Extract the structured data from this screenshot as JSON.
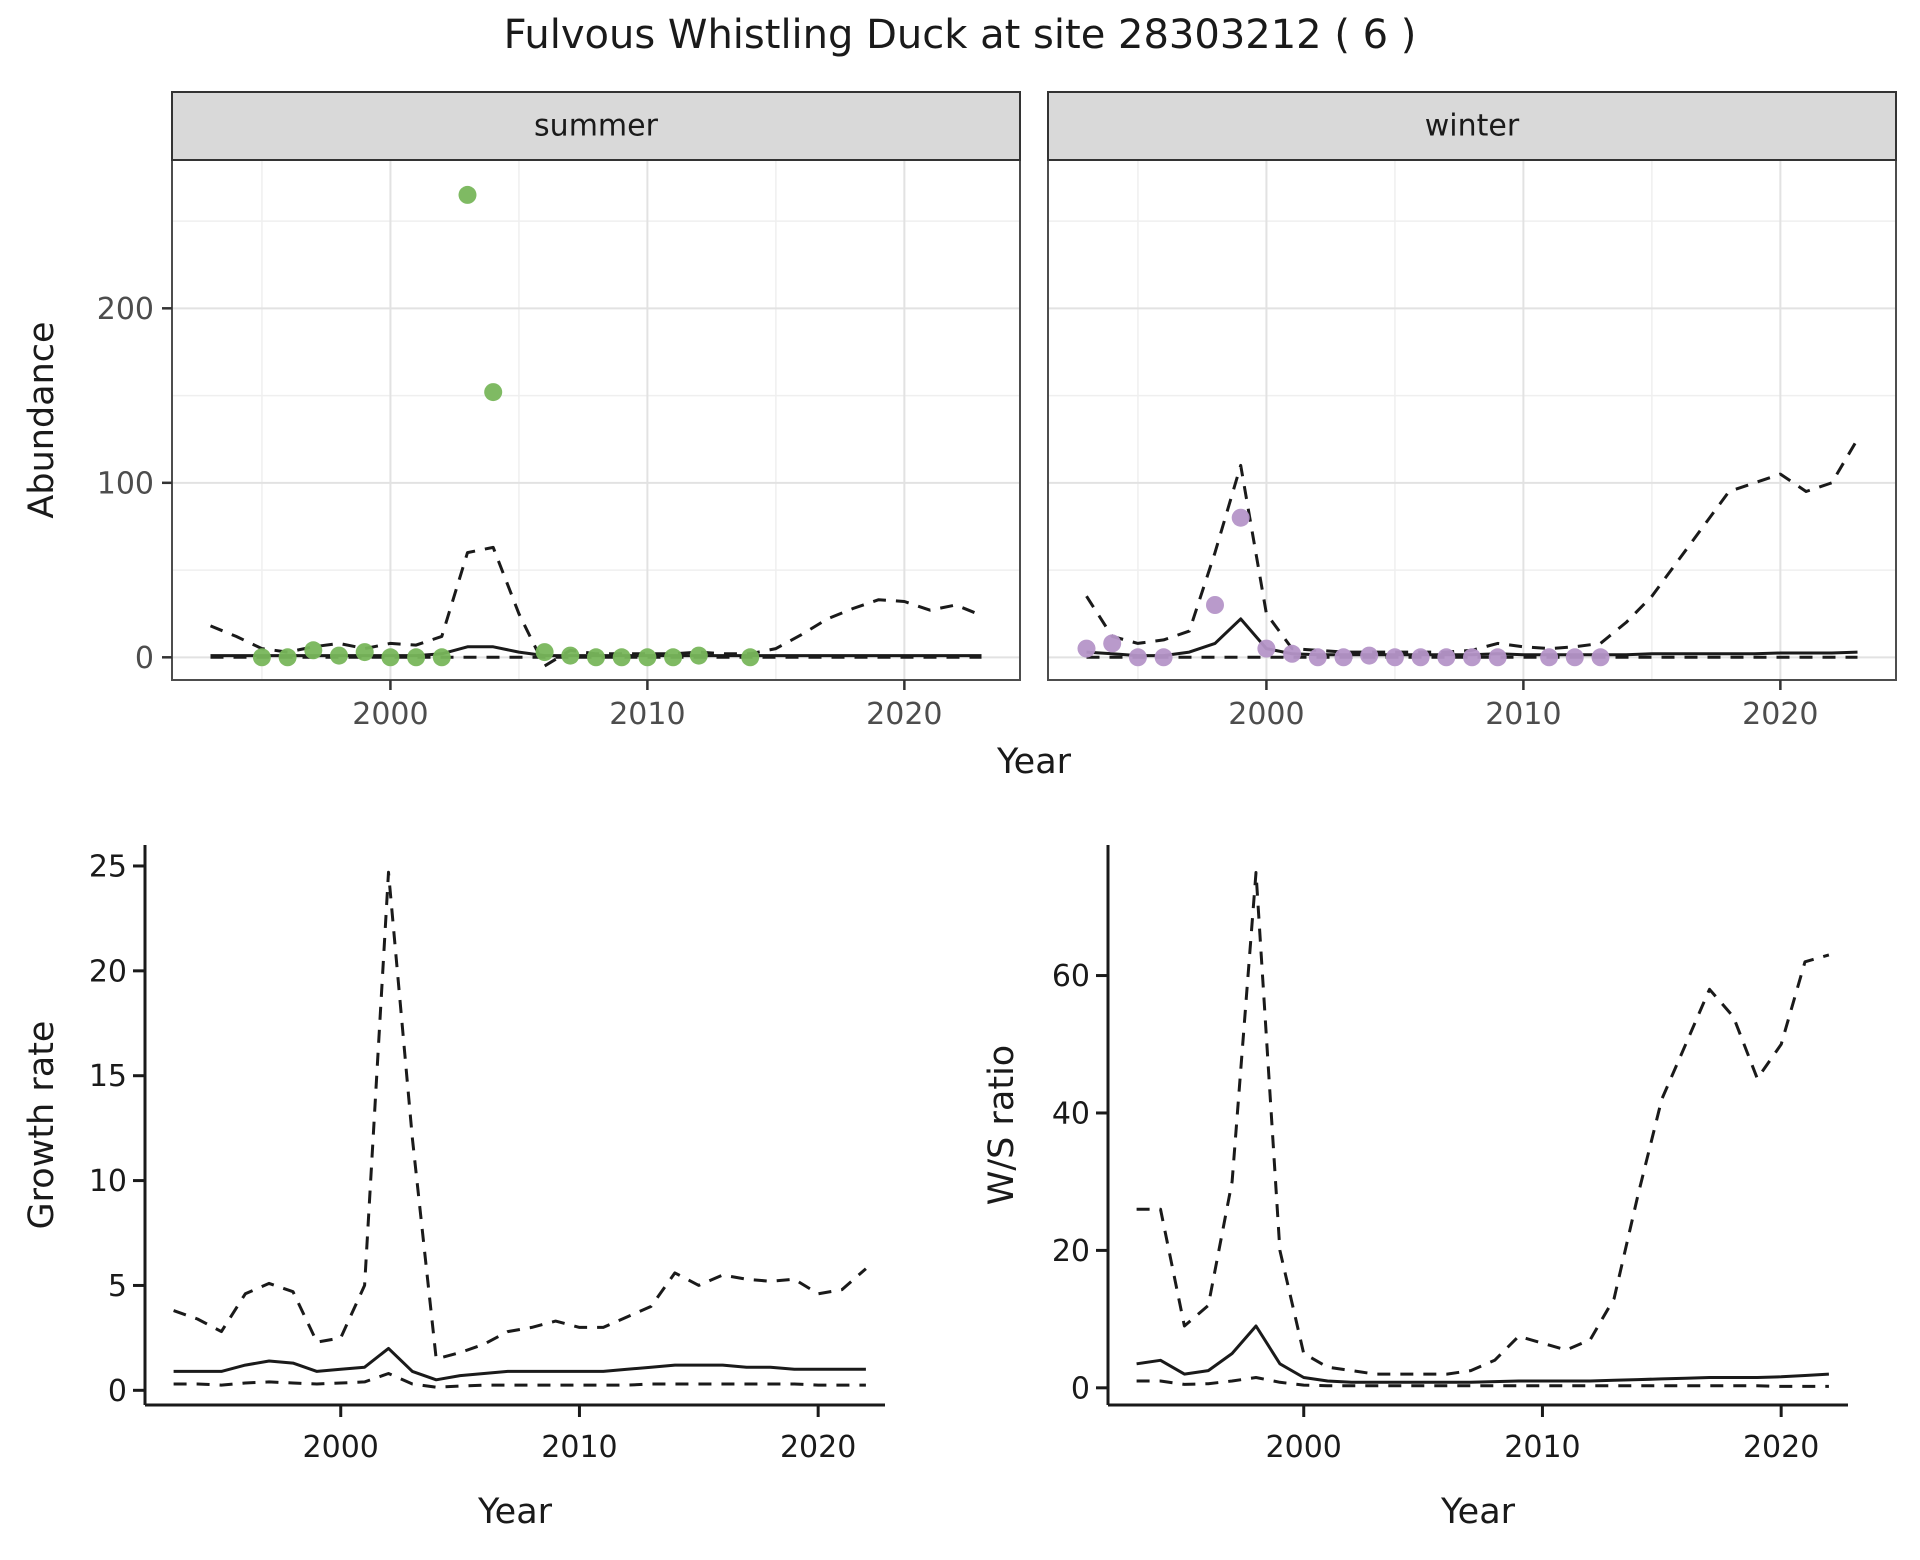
{
  "title": "Fulvous Whistling Duck at site 28303212 ( 6 )",
  "colors": {
    "summer_points": "#78b65b",
    "winter_points": "#b595c8",
    "line": "#1a1a1a",
    "strip_bg": "#d9d9d9",
    "strip_border": "#333333",
    "panel_border": "#4d4d4d",
    "grid_major": "#e2e2e2",
    "grid_minor": "#efefef",
    "tick_label_top": "#4d4d4d",
    "tick_label_bottom": "#1a1a1a"
  },
  "chart_data": [
    {
      "id": "abundance-summer",
      "type": "line",
      "facet_label": "summer",
      "xlabel": "Year",
      "ylabel": "Abundance",
      "xlim": [
        1991.5,
        2024.5
      ],
      "ylim": [
        -13,
        285
      ],
      "xticks": [
        2000,
        2010,
        2020
      ],
      "yticks": [
        0,
        100,
        200
      ],
      "xticks_minor": [
        1995,
        2005,
        2015
      ],
      "yticks_minor": [
        50,
        150,
        250
      ],
      "grid": true,
      "legend": "none",
      "series": [
        {
          "name": "upper-ci",
          "style": "dashed",
          "x": [
            1993,
            1994,
            1995,
            1996,
            1997,
            1998,
            1999,
            2000,
            2001,
            2002,
            2003,
            2004,
            2005,
            2006,
            2007,
            2008,
            2009,
            2010,
            2011,
            2012,
            2013,
            2014,
            2015,
            2016,
            2017,
            2018,
            2019,
            2020,
            2021,
            2022,
            2023
          ],
          "y": [
            18,
            12,
            5,
            3,
            6,
            8,
            5,
            8,
            7,
            12,
            60,
            63,
            25,
            -5,
            4,
            2,
            2,
            2,
            2,
            3,
            2,
            2,
            5,
            13,
            22,
            28,
            33,
            32,
            27,
            30,
            24
          ]
        },
        {
          "name": "lower-ci",
          "style": "dashed",
          "x": [
            1993,
            1994,
            1995,
            1996,
            1997,
            1998,
            1999,
            2000,
            2001,
            2002,
            2003,
            2004,
            2005,
            2006,
            2007,
            2008,
            2009,
            2010,
            2011,
            2012,
            2013,
            2014,
            2015,
            2016,
            2017,
            2018,
            2019,
            2020,
            2021,
            2022,
            2023
          ],
          "y": [
            0,
            0,
            0,
            0,
            0,
            0,
            0,
            0,
            0,
            0,
            0,
            0,
            0,
            0,
            0,
            0,
            0,
            0,
            0,
            0,
            0,
            0,
            0,
            0,
            0,
            0,
            0,
            0,
            0,
            0,
            0
          ]
        },
        {
          "name": "mean",
          "style": "solid",
          "x": [
            1993,
            1994,
            1995,
            1996,
            1997,
            1998,
            1999,
            2000,
            2001,
            2002,
            2003,
            2004,
            2005,
            2006,
            2007,
            2008,
            2009,
            2010,
            2011,
            2012,
            2013,
            2014,
            2015,
            2016,
            2017,
            2018,
            2019,
            2020,
            2021,
            2022,
            2023
          ],
          "y": [
            1,
            1,
            1,
            1,
            1,
            1,
            1,
            1,
            1,
            2,
            6,
            6,
            3,
            1,
            1,
            1,
            1,
            1,
            1,
            1,
            1,
            1,
            1,
            1,
            1,
            1,
            1,
            1,
            1,
            1,
            1
          ]
        },
        {
          "name": "observations",
          "style": "points",
          "color": "#78b65b",
          "x": [
            1995,
            1996,
            1997,
            1998,
            1999,
            2000,
            2001,
            2002,
            2003,
            2004,
            2006,
            2007,
            2008,
            2009,
            2010,
            2011,
            2012,
            2014
          ],
          "y": [
            0,
            0,
            4,
            1,
            3,
            0,
            0,
            0,
            265,
            152,
            3,
            1,
            0,
            0,
            0,
            0,
            1,
            0
          ]
        }
      ]
    },
    {
      "id": "abundance-winter",
      "type": "line",
      "facet_label": "winter",
      "xlabel": "Year",
      "ylabel": "Abundance",
      "xlim": [
        1991.5,
        2024.5
      ],
      "ylim": [
        -13,
        285
      ],
      "xticks": [
        2000,
        2010,
        2020
      ],
      "yticks": [
        0,
        100,
        200
      ],
      "xticks_minor": [
        1995,
        2005,
        2015
      ],
      "yticks_minor": [
        50,
        150,
        250
      ],
      "grid": true,
      "legend": "none",
      "series": [
        {
          "name": "upper-ci",
          "style": "dashed",
          "x": [
            1993,
            1994,
            1995,
            1996,
            1997,
            1998,
            1999,
            2000,
            2001,
            2002,
            2003,
            2004,
            2005,
            2006,
            2007,
            2008,
            2009,
            2010,
            2011,
            2012,
            2013,
            2014,
            2015,
            2016,
            2017,
            2018,
            2019,
            2020,
            2021,
            2022,
            2023
          ],
          "y": [
            35,
            12,
            8,
            10,
            15,
            60,
            110,
            25,
            5,
            4,
            3,
            3,
            3,
            3,
            3,
            4,
            8,
            6,
            5,
            6,
            8,
            20,
            35,
            55,
            75,
            95,
            100,
            105,
            95,
            100,
            125
          ]
        },
        {
          "name": "lower-ci",
          "style": "dashed",
          "x": [
            1993,
            1994,
            1995,
            1996,
            1997,
            1998,
            1999,
            2000,
            2001,
            2002,
            2003,
            2004,
            2005,
            2006,
            2007,
            2008,
            2009,
            2010,
            2011,
            2012,
            2013,
            2014,
            2015,
            2016,
            2017,
            2018,
            2019,
            2020,
            2021,
            2022,
            2023
          ],
          "y": [
            0,
            0,
            0,
            0,
            0,
            0,
            0,
            0,
            0,
            0,
            0,
            0,
            0,
            0,
            0,
            0,
            0,
            0,
            0,
            0,
            0,
            0,
            0,
            0,
            0,
            0,
            0,
            0,
            0,
            0,
            0
          ]
        },
        {
          "name": "mean",
          "style": "solid",
          "x": [
            1993,
            1994,
            1995,
            1996,
            1997,
            1998,
            1999,
            2000,
            2001,
            2002,
            2003,
            2004,
            2005,
            2006,
            2007,
            2008,
            2009,
            2010,
            2011,
            2012,
            2013,
            2014,
            2015,
            2016,
            2017,
            2018,
            2019,
            2020,
            2021,
            2022,
            2023
          ],
          "y": [
            3,
            2,
            1,
            1,
            3,
            8,
            22,
            5,
            2,
            1.5,
            1.5,
            1.5,
            1.5,
            1.5,
            1.5,
            1.5,
            2,
            1.5,
            1.5,
            1.5,
            1.5,
            1.5,
            2,
            2,
            2,
            2,
            2,
            2.5,
            2.5,
            2.5,
            3
          ]
        },
        {
          "name": "observations",
          "style": "points",
          "color": "#b595c8",
          "x": [
            1993,
            1994,
            1995,
            1996,
            1998,
            1999,
            2000,
            2001,
            2002,
            2003,
            2004,
            2005,
            2006,
            2007,
            2008,
            2009,
            2011,
            2012,
            2013
          ],
          "y": [
            5,
            8,
            0,
            0,
            30,
            80,
            5,
            2,
            0,
            0,
            1,
            0,
            0,
            0,
            0,
            0,
            0,
            0,
            0
          ]
        }
      ]
    },
    {
      "id": "growth-rate",
      "type": "line",
      "facet_label": "",
      "xlabel": "Year",
      "ylabel": "Growth rate",
      "xlim": [
        1991.8,
        2022.8
      ],
      "ylim": [
        -0.7,
        26.0
      ],
      "xticks": [
        2000,
        2010,
        2020
      ],
      "yticks": [
        0,
        5,
        10,
        15,
        20,
        25
      ],
      "grid": false,
      "legend": "none",
      "series": [
        {
          "name": "upper-ci",
          "style": "dashed",
          "x": [
            1993,
            1994,
            1995,
            1996,
            1997,
            1998,
            1999,
            2000,
            2001,
            2002,
            2003,
            2004,
            2005,
            2006,
            2007,
            2008,
            2009,
            2010,
            2011,
            2012,
            2013,
            2014,
            2015,
            2016,
            2017,
            2018,
            2019,
            2020,
            2021,
            2022
          ],
          "y": [
            3.8,
            3.4,
            2.8,
            4.6,
            5.1,
            4.7,
            2.3,
            2.5,
            5.0,
            24.7,
            12,
            1.5,
            1.8,
            2.2,
            2.8,
            3.0,
            3.3,
            3.0,
            3.0,
            3.5,
            4.0,
            5.6,
            5.0,
            5.5,
            5.3,
            5.2,
            5.3,
            4.6,
            4.8,
            5.8
          ]
        },
        {
          "name": "lower-ci",
          "style": "dashed",
          "x": [
            1993,
            1994,
            1995,
            1996,
            1997,
            1998,
            1999,
            2000,
            2001,
            2002,
            2003,
            2004,
            2005,
            2006,
            2007,
            2008,
            2009,
            2010,
            2011,
            2012,
            2013,
            2014,
            2015,
            2016,
            2017,
            2018,
            2019,
            2020,
            2021,
            2022
          ],
          "y": [
            0.3,
            0.3,
            0.25,
            0.35,
            0.4,
            0.35,
            0.3,
            0.35,
            0.4,
            0.8,
            0.3,
            0.15,
            0.2,
            0.25,
            0.25,
            0.25,
            0.25,
            0.25,
            0.25,
            0.25,
            0.3,
            0.3,
            0.3,
            0.3,
            0.3,
            0.3,
            0.3,
            0.25,
            0.25,
            0.25
          ]
        },
        {
          "name": "mean",
          "style": "solid",
          "x": [
            1993,
            1994,
            1995,
            1996,
            1997,
            1998,
            1999,
            2000,
            2001,
            2002,
            2003,
            2004,
            2005,
            2006,
            2007,
            2008,
            2009,
            2010,
            2011,
            2012,
            2013,
            2014,
            2015,
            2016,
            2017,
            2018,
            2019,
            2020,
            2021,
            2022
          ],
          "y": [
            0.9,
            0.9,
            0.9,
            1.2,
            1.4,
            1.3,
            0.9,
            1.0,
            1.1,
            2.0,
            0.9,
            0.5,
            0.7,
            0.8,
            0.9,
            0.9,
            0.9,
            0.9,
            0.9,
            1.0,
            1.1,
            1.2,
            1.2,
            1.2,
            1.1,
            1.1,
            1.0,
            1.0,
            1.0,
            1.0
          ]
        }
      ]
    },
    {
      "id": "ws-ratio",
      "type": "line",
      "facet_label": "",
      "xlabel": "Year",
      "ylabel": "W/S ratio",
      "xlim": [
        1991.8,
        2022.8
      ],
      "ylim": [
        -2.5,
        79
      ],
      "xticks": [
        2000,
        2010,
        2020
      ],
      "yticks": [
        0,
        20,
        40,
        60
      ],
      "grid": false,
      "legend": "none",
      "series": [
        {
          "name": "upper-ci",
          "style": "dashed",
          "x": [
            1993,
            1994,
            1995,
            1996,
            1997,
            1998,
            1999,
            2000,
            2001,
            2002,
            2003,
            2004,
            2005,
            2006,
            2007,
            2008,
            2009,
            2010,
            2011,
            2012,
            2013,
            2014,
            2015,
            2016,
            2017,
            2018,
            2019,
            2020,
            2021,
            2022
          ],
          "y": [
            26,
            26,
            9,
            12,
            30,
            75,
            20,
            5,
            3,
            2.5,
            2,
            2,
            2,
            2,
            2.5,
            4,
            7.5,
            6.5,
            5.5,
            7,
            13,
            28,
            42,
            50,
            58,
            54,
            45,
            50,
            62,
            63
          ]
        },
        {
          "name": "lower-ci",
          "style": "dashed",
          "x": [
            1993,
            1994,
            1995,
            1996,
            1997,
            1998,
            1999,
            2000,
            2001,
            2002,
            2003,
            2004,
            2005,
            2006,
            2007,
            2008,
            2009,
            2010,
            2011,
            2012,
            2013,
            2014,
            2015,
            2016,
            2017,
            2018,
            2019,
            2020,
            2021,
            2022
          ],
          "y": [
            1,
            1,
            0.5,
            0.6,
            1,
            1.5,
            0.8,
            0.4,
            0.3,
            0.3,
            0.3,
            0.3,
            0.3,
            0.3,
            0.3,
            0.3,
            0.3,
            0.3,
            0.3,
            0.3,
            0.3,
            0.3,
            0.3,
            0.3,
            0.3,
            0.3,
            0.3,
            0.2,
            0.2,
            0.2
          ]
        },
        {
          "name": "mean",
          "style": "solid",
          "x": [
            1993,
            1994,
            1995,
            1996,
            1997,
            1998,
            1999,
            2000,
            2001,
            2002,
            2003,
            2004,
            2005,
            2006,
            2007,
            2008,
            2009,
            2010,
            2011,
            2012,
            2013,
            2014,
            2015,
            2016,
            2017,
            2018,
            2019,
            2020,
            2021,
            2022
          ],
          "y": [
            3.5,
            4,
            2,
            2.5,
            5,
            9,
            3.5,
            1.5,
            1,
            0.8,
            0.8,
            0.8,
            0.8,
            0.8,
            0.8,
            0.9,
            1,
            1,
            1,
            1,
            1.1,
            1.2,
            1.3,
            1.4,
            1.5,
            1.5,
            1.5,
            1.6,
            1.8,
            2
          ]
        }
      ]
    }
  ]
}
